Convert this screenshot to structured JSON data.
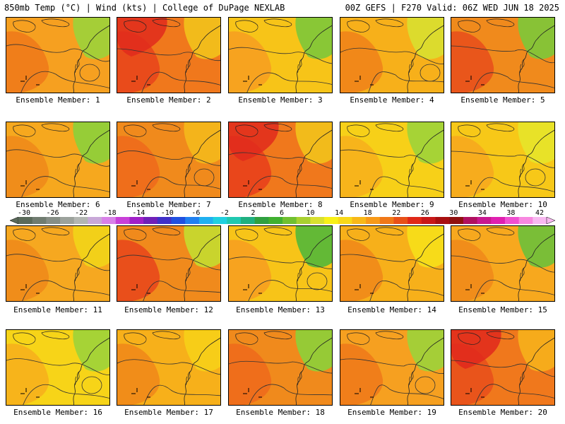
{
  "header": {
    "left": "850mb Temp (°C) | Wind (kts) | College of DuPage NEXLAB",
    "right": "00Z GEFS | F270 Valid: 06Z WED JUN 18 2025"
  },
  "members": [
    {
      "label": "Ensemble Member: 1",
      "base": "#f6a020",
      "warm": "#f07a1a",
      "cool": "#9cd33a",
      "hot": ""
    },
    {
      "label": "Ensemble Member: 2",
      "base": "#f0781c",
      "warm": "#e8461c",
      "cool": "#f2c21c",
      "hot": "#e02a1c"
    },
    {
      "label": "Ensemble Member: 3",
      "base": "#f7c418",
      "warm": "#f6a020",
      "cool": "#7cc83a",
      "hot": ""
    },
    {
      "label": "Ensemble Member: 4",
      "base": "#f7b01a",
      "warm": "#f0841a",
      "cool": "#d8e030",
      "hot": ""
    },
    {
      "label": "Ensemble Member: 5",
      "base": "#f08a1c",
      "warm": "#e8501c",
      "cool": "#7cc83a",
      "hot": ""
    },
    {
      "label": "Ensemble Member: 6",
      "base": "#f6a81e",
      "warm": "#f08a1a",
      "cool": "#8cd03a",
      "hot": ""
    },
    {
      "label": "Ensemble Member: 7",
      "base": "#f08a1c",
      "warm": "#ee6a1c",
      "cool": "#f4b81c",
      "hot": ""
    },
    {
      "label": "Ensemble Member: 8",
      "base": "#f0781c",
      "warm": "#e8401c",
      "cool": "#f2c21c",
      "hot": "#e02a1c"
    },
    {
      "label": "Ensemble Member: 9",
      "base": "#f7d018",
      "warm": "#f6b01c",
      "cool": "#9cd33a",
      "hot": ""
    },
    {
      "label": "Ensemble Member: 10",
      "base": "#f7c818",
      "warm": "#f6a81e",
      "cool": "#e6e42a",
      "hot": ""
    },
    {
      "label": "Ensemble Member: 11",
      "base": "#f6a820",
      "warm": "#f08a1a",
      "cool": "#f2d418",
      "hot": ""
    },
    {
      "label": "Ensemble Member: 12",
      "base": "#f08a1c",
      "warm": "#e8481c",
      "cool": "#c4dc30",
      "hot": ""
    },
    {
      "label": "Ensemble Member: 13",
      "base": "#f7c418",
      "warm": "#f6a020",
      "cool": "#52b83a",
      "hot": ""
    },
    {
      "label": "Ensemble Member: 14",
      "base": "#f7b01a",
      "warm": "#f08a1a",
      "cool": "#f6e01a",
      "hot": ""
    },
    {
      "label": "Ensemble Member: 15",
      "base": "#f7a81e",
      "warm": "#f08a1a",
      "cool": "#6cc03a",
      "hot": ""
    },
    {
      "label": "Ensemble Member: 16",
      "base": "#f7d418",
      "warm": "#f6b01c",
      "cool": "#9cd33a",
      "hot": ""
    },
    {
      "label": "Ensemble Member: 17",
      "base": "#f7b01a",
      "warm": "#f08a1a",
      "cool": "#f6d018",
      "hot": ""
    },
    {
      "label": "Ensemble Member: 18",
      "base": "#f08a1c",
      "warm": "#ee6a1c",
      "cool": "#8cd03a",
      "hot": ""
    },
    {
      "label": "Ensemble Member: 19",
      "base": "#f6a020",
      "warm": "#f07a1a",
      "cool": "#9cd33a",
      "hot": ""
    },
    {
      "label": "Ensemble Member: 20",
      "base": "#f0781c",
      "warm": "#e8501c",
      "cool": "#f6b01c",
      "hot": "#e0281c"
    }
  ],
  "colorbar": {
    "ticks": [
      "-30",
      "-26",
      "-22",
      "-18",
      "-14",
      "-10",
      "-6",
      "-2",
      "2",
      "6",
      "10",
      "14",
      "18",
      "22",
      "26",
      "30",
      "34",
      "38",
      "42"
    ],
    "colors": [
      "#5a6a5a",
      "#707c70",
      "#868e86",
      "#9ca29c",
      "#b2b6b2",
      "#c8a8d8",
      "#d880e8",
      "#c840d8",
      "#a020c8",
      "#7020b8",
      "#4030c8",
      "#2050e0",
      "#2080f0",
      "#20b0f0",
      "#20d0e0",
      "#20c8b0",
      "#20b080",
      "#30a040",
      "#40b030",
      "#70c030",
      "#a8d030",
      "#d8e030",
      "#f8f018",
      "#f8d818",
      "#f8b818",
      "#f89a18",
      "#f07818",
      "#e85018",
      "#e02818",
      "#c81818",
      "#a81010",
      "#901010",
      "#b01060",
      "#c81890",
      "#e020b0",
      "#f050d0",
      "#f888e0",
      "#f8b8f0"
    ]
  }
}
